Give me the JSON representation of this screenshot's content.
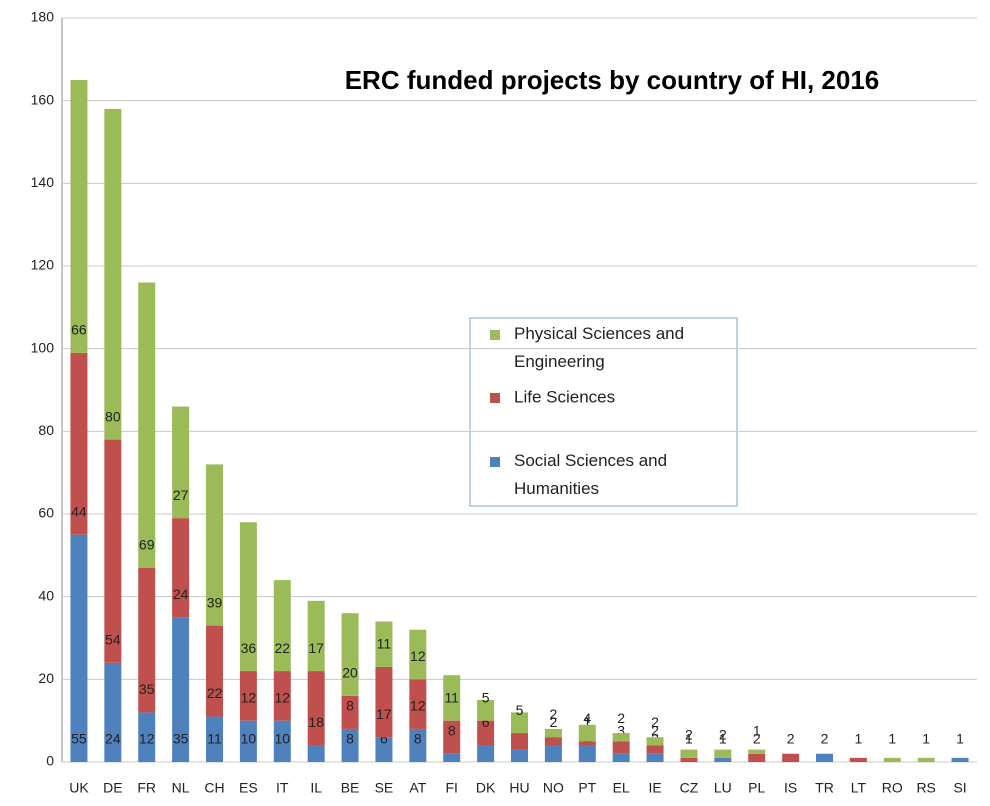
{
  "chart_data": {
    "type": "stacked_bar",
    "title": "ERC funded projects by country of HI, 2016",
    "categories": [
      "UK",
      "DE",
      "FR",
      "NL",
      "CH",
      "ES",
      "IT",
      "IL",
      "BE",
      "SE",
      "AT",
      "FI",
      "DK",
      "HU",
      "NO",
      "PT",
      "EL",
      "IE",
      "CZ",
      "LU",
      "PL",
      "IS",
      "TR",
      "LT",
      "RO",
      "RS",
      "SI"
    ],
    "series": [
      {
        "name": "Social Sciences and Humanities",
        "color": "#4f81bd",
        "values": [
          55,
          24,
          12,
          35,
          11,
          10,
          10,
          4,
          8,
          6,
          8,
          2,
          4,
          3,
          4,
          4,
          2,
          2,
          0,
          1,
          0,
          0,
          2,
          0,
          0,
          0,
          1
        ]
      },
      {
        "name": "Life Sciences",
        "color": "#c0504d",
        "values": [
          44,
          54,
          35,
          24,
          22,
          12,
          12,
          18,
          8,
          17,
          12,
          8,
          6,
          4,
          2,
          1,
          3,
          2,
          1,
          0,
          2,
          2,
          0,
          1,
          0,
          0,
          0
        ]
      },
      {
        "name": "Physical Sciences and Engineering",
        "color": "#9bbb59",
        "values": [
          66,
          80,
          69,
          27,
          39,
          36,
          22,
          17,
          20,
          11,
          12,
          11,
          5,
          5,
          2,
          4,
          2,
          2,
          2,
          2,
          1,
          0,
          0,
          0,
          1,
          1,
          0
        ]
      }
    ],
    "ylim": [
      0,
      180
    ],
    "yticks": [
      0,
      20,
      40,
      60,
      80,
      100,
      120,
      140,
      160,
      180
    ],
    "grid": true
  }
}
